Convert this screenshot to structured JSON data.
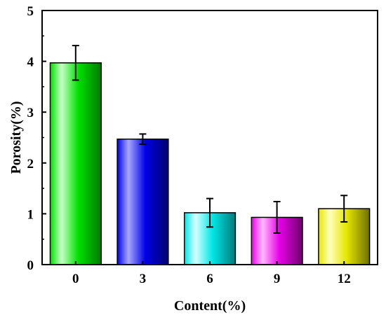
{
  "chart_data": {
    "type": "bar",
    "title": "",
    "xlabel": "Content(%)",
    "ylabel": "Porosity(%)",
    "categories": [
      "0",
      "3",
      "6",
      "9",
      "12"
    ],
    "values": [
      3.97,
      2.47,
      1.02,
      0.93,
      1.1
    ],
    "errors": [
      0.34,
      0.1,
      0.28,
      0.31,
      0.26
    ],
    "ylim": [
      0,
      5
    ],
    "yticks": [
      "0",
      "1",
      "2",
      "3",
      "4",
      "5"
    ],
    "grid": false,
    "legend": "none",
    "bar_colors": [
      {
        "light": "#c8ffc8",
        "mid": "#00e000",
        "dark": "#007a00"
      },
      {
        "light": "#a8a8ff",
        "mid": "#0000e6",
        "dark": "#00006e"
      },
      {
        "light": "#d8ffff",
        "mid": "#00e6e6",
        "dark": "#007a7a"
      },
      {
        "light": "#ffb8ff",
        "mid": "#e600e6",
        "dark": "#6e006e"
      },
      {
        "light": "#ffffc0",
        "mid": "#e6e600",
        "dark": "#6e6e00"
      }
    ]
  }
}
